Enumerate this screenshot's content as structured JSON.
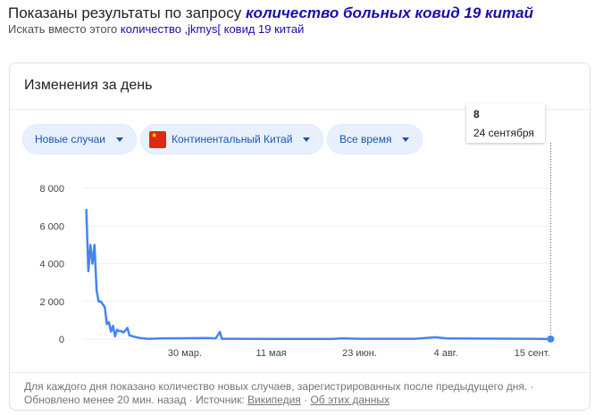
{
  "header": {
    "shown_prefix": "Показаны результаты по запросу",
    "shown_query": "количество больных ковид 19 китай",
    "instead_prefix": "Искать вместо этого",
    "instead_query": "количество ,jkmys[ ковид 19 китай"
  },
  "card": {
    "title": "Изменения за день",
    "filters": [
      {
        "label": "Новые случаи"
      },
      {
        "label": "Континентальный Китай",
        "icon": "china-flag"
      },
      {
        "label": "Все время"
      }
    ],
    "tooltip": {
      "value": "8",
      "date": "24 сентября"
    },
    "footer": {
      "note": "Для каждого дня показано количество новых случаев, зарегистрированных после предыдущего дня.",
      "updated": "Обновлено менее 20 мин. назад",
      "source_label": "Источник:",
      "source_link": "Википедия",
      "about_link": "Об этих данных"
    }
  },
  "colors": {
    "line": "#4285f4",
    "link": "#1a0dab"
  },
  "chart_data": {
    "type": "line",
    "ylim": [
      0,
      8000
    ],
    "grid": true,
    "yticks": [
      {
        "v": 0,
        "label": "0"
      },
      {
        "v": 2000,
        "label": "2 000"
      },
      {
        "v": 4000,
        "label": "4 000"
      },
      {
        "v": 6000,
        "label": "6 000"
      },
      {
        "v": 8000,
        "label": "8 000"
      }
    ],
    "xticks": [
      {
        "date": "2020-03-30",
        "label": "30 мар."
      },
      {
        "date": "2020-05-11",
        "label": "11 мая"
      },
      {
        "date": "2020-06-23",
        "label": "23 июн."
      },
      {
        "date": "2020-08-04",
        "label": "4 авг."
      },
      {
        "date": "2020-09-15",
        "label": "15 сент."
      }
    ],
    "series": [
      {
        "points": [
          [
            "2020-02-11",
            6900
          ],
          [
            "2020-02-12",
            3600
          ],
          [
            "2020-02-13",
            5000
          ],
          [
            "2020-02-14",
            4000
          ],
          [
            "2020-02-15",
            5000
          ],
          [
            "2020-02-16",
            2600
          ],
          [
            "2020-02-17",
            2000
          ],
          [
            "2020-02-18",
            2000
          ],
          [
            "2020-02-19",
            1850
          ],
          [
            "2020-02-20",
            1700
          ],
          [
            "2020-02-21",
            800
          ],
          [
            "2020-02-22",
            900
          ],
          [
            "2020-02-23",
            400
          ],
          [
            "2020-02-24",
            700
          ],
          [
            "2020-02-25",
            150
          ],
          [
            "2020-02-26",
            500
          ],
          [
            "2020-02-27",
            420
          ],
          [
            "2020-02-28",
            430
          ],
          [
            "2020-02-29",
            350
          ],
          [
            "2020-03-01",
            450
          ],
          [
            "2020-03-02",
            600
          ],
          [
            "2020-03-03",
            200
          ],
          [
            "2020-03-05",
            140
          ],
          [
            "2020-03-08",
            60
          ],
          [
            "2020-03-12",
            20
          ],
          [
            "2020-03-20",
            40
          ],
          [
            "2020-03-30",
            50
          ],
          [
            "2020-04-10",
            60
          ],
          [
            "2020-04-14",
            40
          ],
          [
            "2020-04-16",
            380
          ],
          [
            "2020-04-17",
            20
          ],
          [
            "2020-05-11",
            10
          ],
          [
            "2020-06-10",
            10
          ],
          [
            "2020-06-14",
            40
          ],
          [
            "2020-06-23",
            15
          ],
          [
            "2020-07-20",
            20
          ],
          [
            "2020-07-30",
            100
          ],
          [
            "2020-08-04",
            40
          ],
          [
            "2020-09-15",
            15
          ],
          [
            "2020-09-24",
            8
          ]
        ]
      }
    ]
  }
}
